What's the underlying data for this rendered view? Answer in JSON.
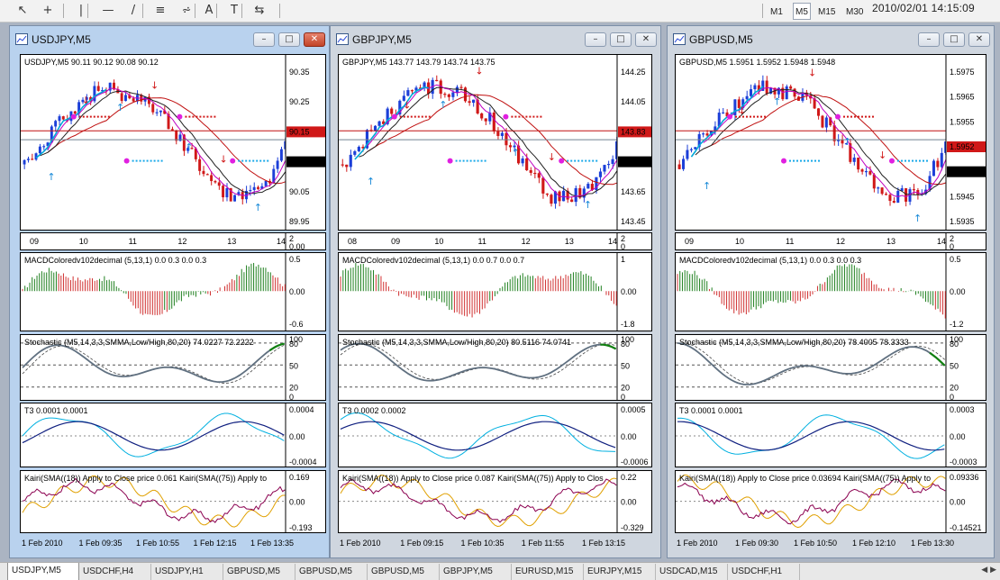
{
  "toolbar": {
    "tools": [
      {
        "name": "cursor-icon",
        "glyph": "↖"
      },
      {
        "name": "crosshair-icon",
        "glyph": "+"
      },
      {
        "name": "vertical-line-icon",
        "glyph": "|"
      },
      {
        "name": "horizontal-line-icon",
        "glyph": "—"
      },
      {
        "name": "trendline-icon",
        "glyph": "/"
      },
      {
        "name": "fibonacci-icon",
        "glyph": "≡"
      },
      {
        "name": "channel-icon",
        "glyph": "⩫"
      },
      {
        "name": "text-icon",
        "glyph": "A"
      },
      {
        "name": "text-label-icon",
        "glyph": "T"
      },
      {
        "name": "arrows-icon",
        "glyph": "⇆"
      }
    ],
    "timeframes": [
      "M1",
      "M5",
      "M15",
      "M30"
    ],
    "active_timeframe": "M5",
    "clock": "2010/02/01 14:15:09"
  },
  "windows": [
    {
      "title": "USDJPY,M5",
      "active": true,
      "price_header": "USDJPY,M5  90.11 90.12 90.08 90.12",
      "price_axis": [
        "90.35",
        "90.25",
        "90.15",
        "90.12",
        "90.05",
        "89.95"
      ],
      "price_current": "90.12",
      "price_line": "90.15",
      "date_axis": [
        "09",
        "10",
        "11",
        "12",
        "13",
        "14"
      ],
      "mini_axis": [
        "2",
        "0.00"
      ],
      "macd_label": "MACDColoredv102decimal (5,13,1) 0.0 0.3 0.0 0.3",
      "macd_axis": [
        "0.5",
        "0.00",
        "-0.6"
      ],
      "stoch_label": "Stochastic (M5,14,3,3,SMMA,Low/High,80,20) 74.0227 72.2222",
      "stoch_axis": [
        "100",
        "80",
        "50",
        "20",
        "0"
      ],
      "t3_label": "T3 0.0001 0.0001",
      "t3_axis": [
        "0.0004",
        "0.00",
        "-0.0004"
      ],
      "kairi_label": "Kairi(SMA((18)) Apply to Close price 0.061  Kairi(SMA((75)) Apply to",
      "kairi_axis": [
        "0.169",
        "0.00",
        "-0.193"
      ],
      "time_axis": [
        "1 Feb 2010",
        "1 Feb 09:35",
        "1 Feb 10:55",
        "1 Feb 12:15",
        "1 Feb 13:35"
      ]
    },
    {
      "title": "GBPJPY,M5",
      "active": false,
      "price_header": "GBPJPY,M5  143.77 143.79 143.74 143.75",
      "price_axis": [
        "144.25",
        "144.05",
        "143.83",
        "143.75",
        "143.65",
        "143.45"
      ],
      "price_current": "143.75",
      "price_line": "143.83",
      "date_axis": [
        "08",
        "09",
        "10",
        "11",
        "12",
        "13",
        "14"
      ],
      "mini_axis": [
        "2",
        "0"
      ],
      "macd_label": "MACDColoredv102decimal (5,13,1) 0.0 0.7 0.0 0.7",
      "macd_axis": [
        "1",
        "0.00",
        "-1.8"
      ],
      "stoch_label": "Stochastic (M5,14,3,3,SMMA,Low/High,80,20) 80.5116 74.0741",
      "stoch_axis": [
        "100",
        "80",
        "50",
        "20",
        "0"
      ],
      "t3_label": "T3 0.0002 0.0002",
      "t3_axis": [
        "0.0005",
        "0.00",
        "-0.0006"
      ],
      "kairi_label": "Kairi(SMA((18)) Apply to Close price 0.087  Kairi(SMA((75)) Apply to Clos",
      "kairi_axis": [
        "0.22",
        "0.00",
        "-0.329"
      ],
      "time_axis": [
        "1 Feb 2010",
        "1 Feb 09:15",
        "1 Feb 10:35",
        "1 Feb 11:55",
        "1 Feb 13:15"
      ]
    },
    {
      "title": "GBPUSD,M5",
      "active": false,
      "price_header": "GBPUSD,M5  1.5951 1.5952 1.5948 1.5948",
      "price_axis": [
        "1.5975",
        "1.5965",
        "1.5955",
        "1.5952",
        "1.5948",
        "1.5945",
        "1.5935"
      ],
      "price_current": "1.5948",
      "price_line": "1.5952",
      "date_axis": [
        "09",
        "10",
        "11",
        "12",
        "13",
        "14"
      ],
      "mini_axis": [
        "2",
        "0"
      ],
      "macd_label": "MACDColoredv102decimal (5,13,1) 0.0 0.3 0.0 0.3",
      "macd_axis": [
        "0.5",
        "0.00",
        "-1.2"
      ],
      "stoch_label": "Stochastic (M5,14,3,3,SMMA,Low/High,80,20) 78.4005 78.3333",
      "stoch_axis": [
        "100",
        "80",
        "50",
        "20",
        "0"
      ],
      "t3_label": "T3 0.0001 0.0001",
      "t3_axis": [
        "0.0003",
        "0.00",
        "-0.0003"
      ],
      "kairi_label": "Kairi(SMA((18)) Apply to Close price 0.03694  Kairi(SMA((75)) Apply to",
      "kairi_axis": [
        "0.09336",
        "0.00",
        "-0.14521"
      ],
      "time_axis": [
        "1 Feb 2010",
        "1 Feb 09:30",
        "1 Feb 10:50",
        "1 Feb 12:10",
        "1 Feb 13:30"
      ]
    }
  ],
  "tabs": [
    "USDJPY,M5",
    "USDCHF,H4",
    "USDJPY,H1",
    "GBPUSD,M5",
    "GBPUSD,M5",
    "GBPUSD,M5",
    "GBPJPY,M5",
    "EURUSD,M15",
    "EURJPY,M15",
    "USDCAD,M15",
    "USDCHF,H1"
  ],
  "active_tab": "USDJPY,M5",
  "colors": {
    "bull": "#1c3fd8",
    "bear": "#d01818",
    "ma_short": "#00a8d8",
    "ma_long": "#c01010",
    "ma_mid": "#202020",
    "signal": "#c000c0",
    "macd_up": "#208020",
    "macd_down": "#d03030",
    "stoch_main": "#607080",
    "stoch_low": "#d01010",
    "stoch_high": "#108010",
    "t3_a": "#00b0e0",
    "t3_b": "#102080",
    "kairi_a": "#8b0050",
    "kairi_b": "#e0a000"
  }
}
